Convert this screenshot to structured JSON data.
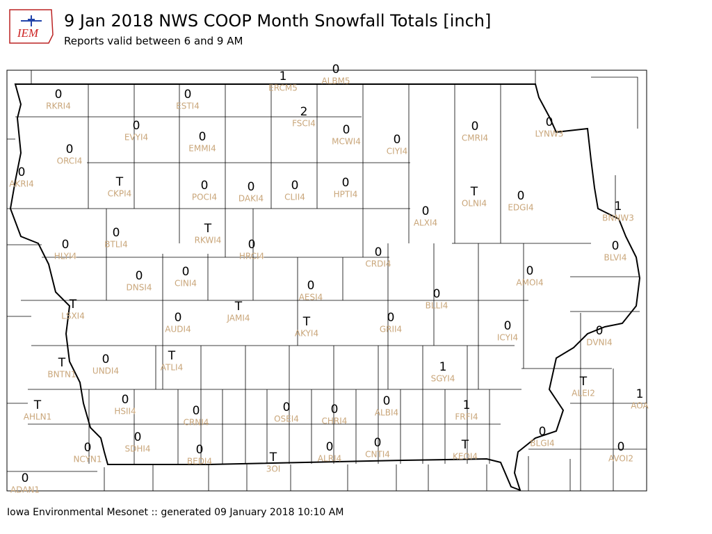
{
  "header": {
    "logo": "IEM",
    "title": "9 Jan 2018 NWS COOP Month Snowfall Totals [inch]",
    "subtitle": "Reports valid between 6 and 9 AM"
  },
  "footer": "Iowa Environmental Mesonet :: generated 09 January 2018 10:10 AM",
  "stations": [
    {
      "id": "ERCM5",
      "value": 1
    },
    {
      "id": "ALBM5",
      "value": 0
    },
    {
      "id": "RKRI4",
      "value": 0
    },
    {
      "id": "ESTI4",
      "value": 0
    },
    {
      "id": "FSCI4",
      "value": 2
    },
    {
      "id": "LYNW3",
      "value": 0
    },
    {
      "id": "EVYI4",
      "value": 0
    },
    {
      "id": "EMMI4",
      "value": 0
    },
    {
      "id": "MCWI4",
      "value": 0
    },
    {
      "id": "CIYI4",
      "value": 0
    },
    {
      "id": "CMRI4",
      "value": 0
    },
    {
      "id": "ORCI4",
      "value": 0
    },
    {
      "id": "AKRI4",
      "value": 0
    },
    {
      "id": "CKPI4",
      "value": "T"
    },
    {
      "id": "POCI4",
      "value": 0
    },
    {
      "id": "DAKI4",
      "value": 0
    },
    {
      "id": "CLII4",
      "value": 0
    },
    {
      "id": "HPTI4",
      "value": 0
    },
    {
      "id": "OLNI4",
      "value": "T"
    },
    {
      "id": "EDGI4",
      "value": 0
    },
    {
      "id": "BNNW3",
      "value": 1
    },
    {
      "id": "ALXI4",
      "value": 0
    },
    {
      "id": "BTLI4",
      "value": 0
    },
    {
      "id": "RKWI4",
      "value": "T"
    },
    {
      "id": "HLYI4",
      "value": 0
    },
    {
      "id": "HRCI4",
      "value": 0
    },
    {
      "id": "CRDI4",
      "value": 0
    },
    {
      "id": "BLVI4",
      "value": 0
    },
    {
      "id": "AMOI4",
      "value": 0
    },
    {
      "id": "DNSI4",
      "value": 0
    },
    {
      "id": "CINI4",
      "value": 0
    },
    {
      "id": "AESI4",
      "value": 0
    },
    {
      "id": "BLLI4",
      "value": 0
    },
    {
      "id": "LSXI4",
      "value": "T"
    },
    {
      "id": "JAMI4",
      "value": "T"
    },
    {
      "id": "AUDI4",
      "value": 0
    },
    {
      "id": "AKYI4",
      "value": "T"
    },
    {
      "id": "GRII4",
      "value": 0
    },
    {
      "id": "ICYI4",
      "value": 0
    },
    {
      "id": "DVNI4",
      "value": 0
    },
    {
      "id": "BNTN1",
      "value": "T"
    },
    {
      "id": "UNDI4",
      "value": 0
    },
    {
      "id": "ATLI4",
      "value": "T"
    },
    {
      "id": "SGYI4",
      "value": 1
    },
    {
      "id": "ALEI2",
      "value": "T"
    },
    {
      "id": "AOA",
      "value": 1
    },
    {
      "id": "AHLN1",
      "value": "T"
    },
    {
      "id": "HSII4",
      "value": 0
    },
    {
      "id": "CRNI4",
      "value": 0
    },
    {
      "id": "OSEI4",
      "value": 0
    },
    {
      "id": "CHRI4",
      "value": 0
    },
    {
      "id": "ALBI4",
      "value": 0
    },
    {
      "id": "FRFI4",
      "value": 1
    },
    {
      "id": "SDHI4",
      "value": 0
    },
    {
      "id": "BLGI4",
      "value": 0
    },
    {
      "id": "NCYN1",
      "value": 0
    },
    {
      "id": "BEDI4",
      "value": 0
    },
    {
      "id": "ALRI4",
      "value": 0
    },
    {
      "id": "CNTI4",
      "value": 0
    },
    {
      "id": "KEOI4",
      "value": "T"
    },
    {
      "id": "AVOI2",
      "value": 0
    },
    {
      "id": "3OI",
      "value": "T"
    },
    {
      "id": "ADAN1",
      "value": 0
    }
  ]
}
